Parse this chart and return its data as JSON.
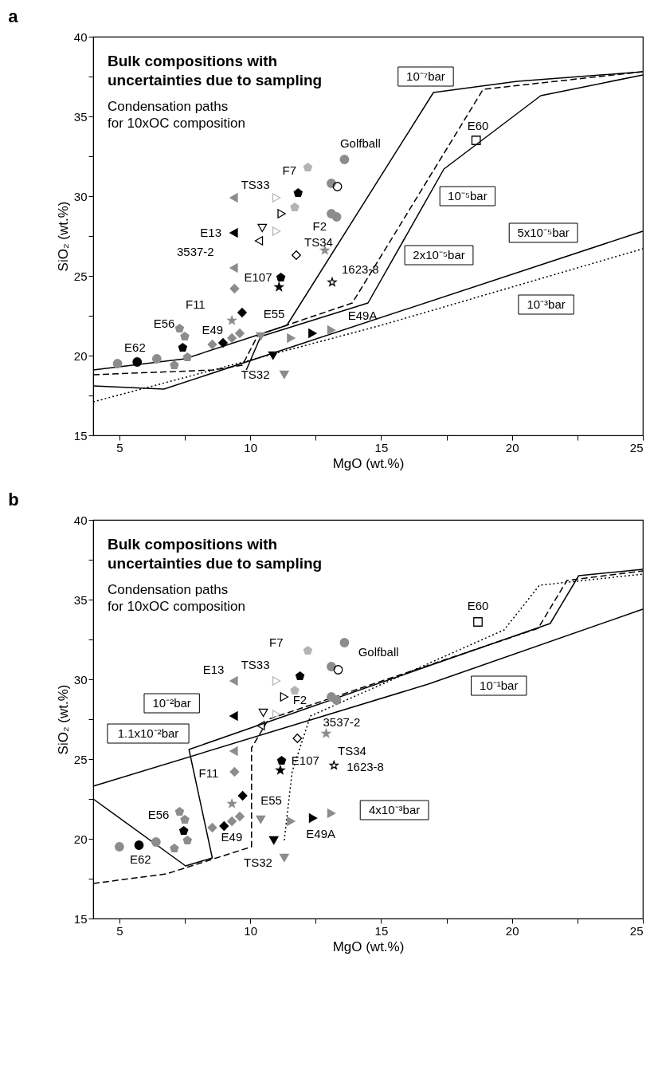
{
  "chart_data": [
    {
      "type": "line",
      "title": "a",
      "xlabel": "MgO (wt.%)",
      "ylabel": "SiO₂ (wt.%)",
      "xlim": [
        4,
        25
      ],
      "ylim": [
        15,
        40
      ],
      "xticks": [
        5,
        {
          "value": 7.5,
          "label": null
        },
        10,
        {
          "value": 12.5,
          "label": null
        },
        15,
        {
          "value": 17.5,
          "label": null
        },
        20,
        {
          "value": 22.5,
          "label": null
        },
        25
      ],
      "yticks": [
        15,
        {
          "value": 17.5,
          "label": null
        },
        20,
        {
          "value": 22.5,
          "label": null
        },
        25,
        {
          "value": 27.5,
          "label": null
        },
        30,
        {
          "value": 32.5,
          "label": null
        },
        35,
        {
          "value": 37.5,
          "label": null
        },
        40
      ],
      "series": [
        {
          "type": "line",
          "color": "#000000",
          "line_style": "solid",
          "x": [
            4,
            7.5,
            10.3,
            11.4,
            17.0,
            20.2,
            25
          ],
          "values": [
            19.1,
            19.8,
            21.3,
            21.9,
            36.5,
            37.2,
            37.8
          ]
        },
        {
          "type": "line",
          "color": "#000000",
          "line_style": "dashed",
          "x": [
            4,
            8.6,
            9.7,
            10.3,
            13.9,
            18.9,
            25
          ],
          "values": [
            18.8,
            19.1,
            19.4,
            21.3,
            23.3,
            36.7,
            37.8
          ]
        },
        {
          "type": "line",
          "color": "#000000",
          "line_style": "solid",
          "x": [
            9.85,
            10.4,
            14.5,
            17.4,
            21.1,
            25
          ],
          "values": [
            19.1,
            21.2,
            23.3,
            31.7,
            36.3,
            37.6
          ]
        },
        {
          "type": "line",
          "color": "#000000",
          "line_style": "solid",
          "x": [
            4,
            6.7,
            25
          ],
          "values": [
            18.1,
            17.9,
            27.8
          ]
        },
        {
          "type": "line",
          "color": "#000000",
          "line_style": "dotted",
          "x": [
            4,
            15.0,
            25
          ],
          "values": [
            17.1,
            21.9,
            26.7
          ]
        },
        {
          "type": "scatter",
          "color": "#8c8c8c",
          "marker": "circle",
          "x": [
            4.93,
            6.43,
            13.6,
            13.1,
            13.1,
            13.3
          ],
          "values": [
            19.5,
            19.8,
            32.3,
            30.8,
            28.9,
            28.7
          ]
        },
        {
          "type": "scatter",
          "color": "#8c8c8c",
          "x": [
            7.3,
            7.1,
            7.6,
            7.5
          ],
          "values": [
            21.7,
            19.4,
            19.9,
            21.2
          ]
        },
        {
          "type": "scatter",
          "color": "#8c8c8c",
          "marker": "diamond",
          "x": [
            8.55,
            9.3,
            9.4,
            9.6
          ],
          "values": [
            20.7,
            21.1,
            24.2,
            21.4
          ]
        },
        {
          "type": "scatter",
          "color": "#8c8c8c",
          "marker": "triangle-left",
          "x": [
            9.37,
            9.37
          ],
          "values": [
            29.9,
            25.5
          ]
        },
        {
          "type": "scatter",
          "color": "#8c8c8c",
          "marker": "star",
          "x": [
            12.85,
            9.3
          ],
          "values": [
            26.6,
            22.2
          ]
        },
        {
          "type": "scatter",
          "color": "#8c8c8c",
          "marker": "triangle-down",
          "x": [
            10.4,
            11.3
          ],
          "values": [
            21.2,
            18.8
          ]
        },
        {
          "type": "scatter",
          "color": "#8c8c8c",
          "marker": "triangle-right",
          "x": [
            11.56,
            13.1
          ],
          "values": [
            21.1,
            21.6
          ]
        },
        {
          "type": "scatter",
          "color": "#b4b4b4",
          "x": [
            12.2,
            11.7
          ],
          "values": [
            31.8,
            29.3
          ]
        },
        {
          "type": "scatter",
          "color": "#b4b4b4",
          "marker": "triangle-right-open",
          "x": [
            11.0,
            11.0
          ],
          "values": [
            29.9,
            27.8
          ]
        },
        {
          "type": "scatter",
          "color": "#000000",
          "marker": "circle",
          "x": [
            5.68
          ],
          "values": [
            19.6
          ]
        },
        {
          "type": "scatter",
          "color": "#000000",
          "x": [
            7.42
          ],
          "values": [
            20.5
          ]
        },
        {
          "type": "scatter",
          "color": "#000000",
          "marker": "diamond",
          "x": [
            8.96,
            9.69
          ],
          "values": [
            20.8,
            22.7
          ]
        },
        {
          "type": "scatter",
          "color": "#000000",
          "marker": "triangle-left",
          "x": [
            9.37
          ],
          "values": [
            27.7
          ]
        },
        {
          "type": "scatter",
          "color": "#000000",
          "marker": "triangle-down",
          "x": [
            10.87
          ],
          "values": [
            20.0
          ]
        },
        {
          "type": "scatter",
          "color": "#000000",
          "marker": "triangle-right",
          "x": [
            12.38
          ],
          "values": [
            21.4
          ]
        },
        {
          "type": "scatter",
          "color": "#000000",
          "marker": "star",
          "x": [
            11.1
          ],
          "values": [
            24.3
          ]
        },
        {
          "type": "scatter",
          "color": "#000000",
          "marker": "triangle-down-open",
          "x": [
            10.46
          ],
          "values": [
            28.0
          ]
        },
        {
          "type": "scatter",
          "color": "#000000",
          "marker": "triangle-left-open",
          "x": [
            10.33
          ],
          "values": [
            27.2
          ]
        },
        {
          "type": "scatter",
          "color": "#000000",
          "marker": "triangle-right-open",
          "x": [
            11.2
          ],
          "values": [
            28.9
          ]
        },
        {
          "type": "scatter",
          "color": "#000000",
          "x": [
            11.83
          ],
          "values": [
            30.2
          ]
        },
        {
          "type": "scatter",
          "color": "#000000",
          "marker": "diamond-open",
          "x": [
            11.76
          ],
          "values": [
            26.3
          ]
        },
        {
          "type": "scatter",
          "color": "#000000",
          "x": [
            11.17
          ],
          "values": [
            24.9
          ]
        },
        {
          "type": "scatter",
          "color": "#000000",
          "marker": "star-open",
          "x": [
            13.13
          ],
          "values": [
            24.6
          ]
        },
        {
          "type": "scatter",
          "color": "#000000",
          "marker": "circle-open",
          "x": [
            13.33
          ],
          "values": [
            30.6
          ]
        },
        {
          "type": "scatter",
          "color": "#000000",
          "marker": "square-open",
          "x": [
            18.63
          ],
          "values": [
            33.5
          ]
        }
      ],
      "annotations": [
        "Bulk compositions with uncertainties due to sampling",
        "Condensation paths for 10xOC composition",
        "10⁻⁷bar",
        "10⁻⁵bar",
        "5x10⁻⁵bar",
        "2x10⁻⁵bar",
        "10⁻³bar",
        "E62",
        "E56",
        "E49",
        "E13",
        "3537-2",
        "TS33",
        "F7",
        "F2",
        "TS34",
        "E107",
        "1623-8",
        "F11",
        "E55",
        "E49A",
        "TS32",
        "Golfball",
        "E60"
      ]
    },
    {
      "type": "line",
      "title": "b",
      "xlabel": "MgO (wt.%)",
      "ylabel": "SiO₂ (wt.%)",
      "xlim": [
        4,
        25
      ],
      "ylim": [
        15,
        40
      ],
      "xticks": [
        5,
        {
          "value": 7.5,
          "label": null
        },
        10,
        {
          "value": 12.5,
          "label": null
        },
        15,
        {
          "value": 17.5,
          "label": null
        },
        20,
        {
          "value": 22.5,
          "label": null
        },
        25
      ],
      "yticks": [
        15,
        {
          "value": 17.5,
          "label": null
        },
        20,
        {
          "value": 22.5,
          "label": null
        },
        25,
        {
          "value": 27.5,
          "label": null
        },
        30,
        {
          "value": 32.5,
          "label": null
        },
        35,
        {
          "value": 37.5,
          "label": null
        },
        40
      ],
      "series": [
        {
          "type": "line",
          "color": "#000000",
          "line_style": "solid",
          "x": [
            4,
            7.53,
            8.55,
            7.66,
            21.46,
            22.55,
            25
          ],
          "values": [
            22.5,
            18.3,
            18.8,
            25.6,
            33.5,
            36.5,
            36.9
          ]
        },
        {
          "type": "line",
          "color": "#000000",
          "line_style": "dashed",
          "x": [
            4,
            6.8,
            10.05,
            10.05,
            10.7,
            21.0,
            22.1,
            25
          ],
          "values": [
            17.2,
            17.8,
            19.5,
            25.7,
            27.5,
            33.2,
            36.2,
            36.8
          ]
        },
        {
          "type": "line",
          "color": "#000000",
          "line_style": "dotted",
          "x": [
            11.3,
            11.6,
            12.3,
            19.7,
            21.05,
            25
          ],
          "values": [
            19.9,
            24.2,
            27.7,
            33.1,
            35.9,
            36.6
          ]
        },
        {
          "type": "line",
          "color": "#000000",
          "line_style": "solid",
          "x": [
            4,
            16.8,
            25
          ],
          "values": [
            23.3,
            29.7,
            34.4
          ]
        },
        {
          "type": "scatter",
          "color": "#8c8c8c",
          "marker": "circle",
          "x": [
            5.0,
            6.4,
            13.6,
            13.1,
            13.1,
            13.3
          ],
          "values": [
            19.5,
            19.8,
            32.3,
            30.8,
            28.9,
            28.7
          ]
        },
        {
          "type": "scatter",
          "color": "#8c8c8c",
          "x": [
            7.3,
            7.1,
            7.6,
            7.5
          ],
          "values": [
            21.7,
            19.4,
            19.9,
            21.2
          ]
        },
        {
          "type": "scatter",
          "color": "#8c8c8c",
          "marker": "diamond",
          "x": [
            8.55,
            9.3,
            9.4,
            9.6
          ],
          "values": [
            20.7,
            21.1,
            24.2,
            21.4
          ]
        },
        {
          "type": "scatter",
          "color": "#8c8c8c",
          "marker": "triangle-left",
          "x": [
            9.37,
            9.37
          ],
          "values": [
            29.9,
            25.5
          ]
        },
        {
          "type": "scatter",
          "color": "#8c8c8c",
          "marker": "star",
          "x": [
            12.9,
            9.3
          ],
          "values": [
            26.6,
            22.2
          ]
        },
        {
          "type": "scatter",
          "color": "#8c8c8c",
          "marker": "triangle-down",
          "x": [
            10.4,
            11.3
          ],
          "values": [
            21.2,
            18.8
          ]
        },
        {
          "type": "scatter",
          "color": "#8c8c8c",
          "marker": "triangle-right",
          "x": [
            11.56,
            13.1
          ],
          "values": [
            21.1,
            21.6
          ]
        },
        {
          "type": "scatter",
          "color": "#b4b4b4",
          "x": [
            12.2,
            11.7
          ],
          "values": [
            31.8,
            29.3
          ]
        },
        {
          "type": "scatter",
          "color": "#b4b4b4",
          "marker": "triangle-right-open",
          "x": [
            11.0,
            11.0
          ],
          "values": [
            29.9,
            27.8
          ]
        },
        {
          "type": "scatter",
          "color": "#000000",
          "marker": "circle",
          "x": [
            5.75
          ],
          "values": [
            19.6
          ]
        },
        {
          "type": "scatter",
          "color": "#000000",
          "x": [
            7.46
          ],
          "values": [
            20.5
          ]
        },
        {
          "type": "scatter",
          "color": "#000000",
          "marker": "diamond",
          "x": [
            9.0,
            9.71
          ],
          "values": [
            20.8,
            22.7
          ]
        },
        {
          "type": "scatter",
          "color": "#000000",
          "marker": "triangle-left",
          "x": [
            9.37
          ],
          "values": [
            27.7
          ]
        },
        {
          "type": "scatter",
          "color": "#000000",
          "marker": "triangle-down",
          "x": [
            10.9
          ],
          "values": [
            19.9
          ]
        },
        {
          "type": "scatter",
          "color": "#000000",
          "marker": "triangle-right",
          "x": [
            12.4
          ],
          "values": [
            21.3
          ]
        },
        {
          "type": "scatter",
          "color": "#000000",
          "marker": "star",
          "x": [
            11.15
          ],
          "values": [
            24.3
          ]
        },
        {
          "type": "scatter",
          "color": "#000000",
          "marker": "triangle-down-open",
          "x": [
            10.5
          ],
          "values": [
            27.9
          ]
        },
        {
          "type": "scatter",
          "color": "#000000",
          "marker": "triangle-left-open",
          "x": [
            10.4
          ],
          "values": [
            27.1
          ]
        },
        {
          "type": "scatter",
          "color": "#000000",
          "marker": "triangle-right-open",
          "x": [
            11.3
          ],
          "values": [
            28.9
          ]
        },
        {
          "type": "scatter",
          "color": "#000000",
          "x": [
            11.9
          ],
          "values": [
            30.2
          ]
        },
        {
          "type": "scatter",
          "color": "#000000",
          "marker": "diamond-open",
          "x": [
            11.8
          ],
          "values": [
            26.3
          ]
        },
        {
          "type": "scatter",
          "color": "#000000",
          "x": [
            11.2
          ],
          "values": [
            24.9
          ]
        },
        {
          "type": "scatter",
          "color": "#000000",
          "marker": "star-open",
          "x": [
            13.2
          ],
          "values": [
            24.6
          ]
        },
        {
          "type": "scatter",
          "color": "#000000",
          "marker": "circle-open",
          "x": [
            13.36
          ],
          "values": [
            30.6
          ]
        },
        {
          "type": "scatter",
          "color": "#000000",
          "marker": "square-open",
          "x": [
            18.7
          ],
          "values": [
            33.6
          ]
        }
      ],
      "annotations": [
        "Bulk compositions with uncertainties due to sampling",
        "Condensation paths for 10xOC composition",
        "10⁻²bar",
        "1.1x10⁻²bar",
        "4x10⁻³bar",
        "10⁻¹bar",
        "E62",
        "E56",
        "E49",
        "TS32",
        "E49A",
        "E55",
        "F11",
        "E13",
        "TS33",
        "F7",
        "F2",
        "Golfball",
        "3537-2",
        "TS34",
        "E107",
        "1623-8",
        "E60"
      ]
    }
  ]
}
